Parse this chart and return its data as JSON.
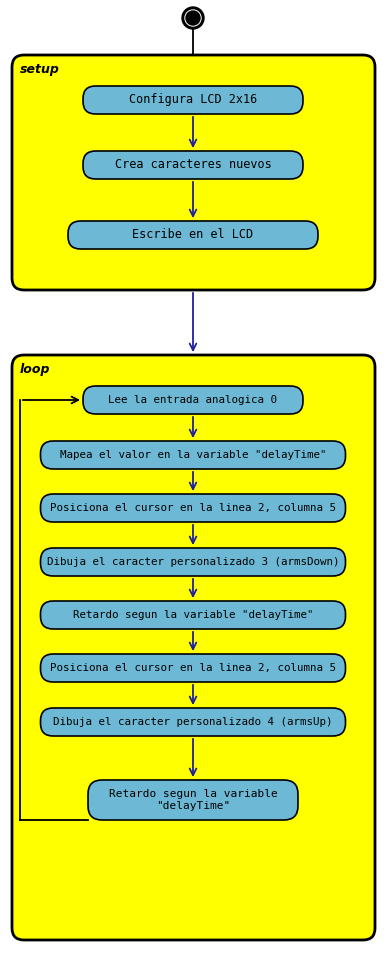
{
  "bg_color": "#ffffff",
  "yellow": "#ffff00",
  "box_fill": "#6db8d4",
  "box_edge": "#000000",
  "arrow_color": "#2020a0",
  "container_edge": "#000000",
  "setup_label": "setup",
  "loop_label": "loop",
  "setup_boxes": [
    "Configura LCD 2x16",
    "Crea caracteres nuevos",
    "Escribe en el LCD"
  ],
  "loop_boxes": [
    "Lee la entrada analogica 0",
    "Mapea el valor en la variable \"delayTime\"",
    "Posiciona el cursor en la linea 2, columna 5",
    "Dibuja el caracter personalizado 3 (armsDown)",
    "Retardo segun la variable \"delayTime\"",
    "Posiciona el cursor en la linea 2, columna 5",
    "Dibuja el caracter personalizado 4 (armsUp)",
    "Retardo segun la variable\n\"delayTime\""
  ],
  "fig_w": 3.87,
  "fig_h": 9.64,
  "dpi": 100
}
